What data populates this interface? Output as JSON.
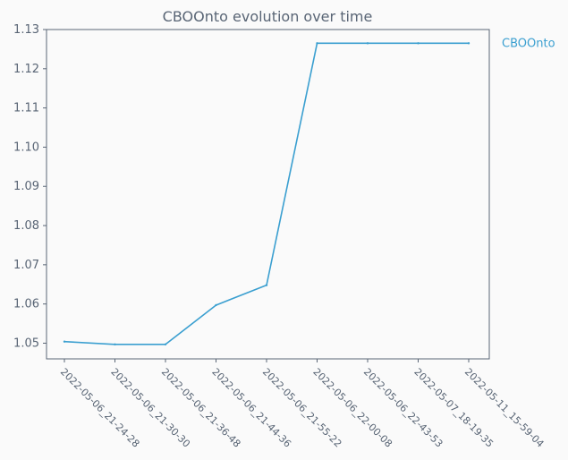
{
  "chart_data": {
    "type": "line",
    "title": "CBOOnto evolution over time",
    "xlabel": "",
    "ylabel": "",
    "categories": [
      "2022-05-06_21-24-28",
      "2022-05-06_21-30-30",
      "2022-05-06_21-36-48",
      "2022-05-06_21-44-36",
      "2022-05-06_21-55-22",
      "2022-05-06_22-00-08",
      "2022-05-06_22-43-53",
      "2022-05-07_18-19-35",
      "2022-05-11_15-59-04"
    ],
    "series": [
      {
        "name": "CBOOnto",
        "color": "#3a9fd0",
        "values": [
          1.0504,
          1.0497,
          1.0497,
          1.0597,
          1.0648,
          1.1265,
          1.1265,
          1.1265,
          1.1265
        ]
      }
    ],
    "ylim": [
      1.046,
      1.13
    ],
    "yticks": [
      "1.05",
      "1.06",
      "1.07",
      "1.08",
      "1.09",
      "1.10",
      "1.11",
      "1.12",
      "1.13"
    ],
    "grid": false,
    "legend_placement": "right"
  }
}
